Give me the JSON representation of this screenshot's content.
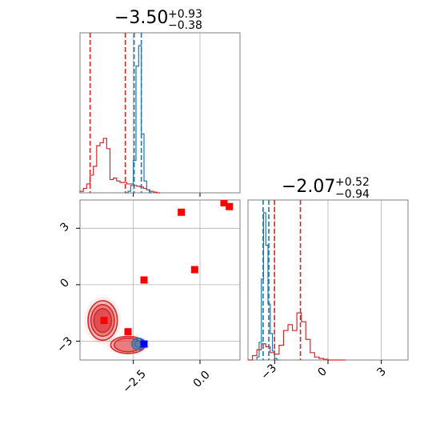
{
  "chart_data": [
    {
      "type": "histogram",
      "panel": "marginal-param-1",
      "title": {
        "value": "−3.50",
        "upper": "+0.93",
        "lower": "−0.38"
      },
      "xlim": [
        -4.5,
        1.5
      ],
      "grid": true,
      "series": [
        {
          "name": "",
          "color": "#d62728",
          "bin_edges": [
            -4.5,
            -4.375,
            -4.25,
            -4.125,
            -4.0,
            -3.875,
            -3.75,
            -3.625,
            -3.5,
            -3.375,
            -3.25,
            -3.125,
            -3.0,
            -2.875,
            -2.75,
            -2.625,
            -2.5,
            -2.375,
            -2.25,
            -2.125,
            -2.0,
            -1.875,
            -1.75,
            -1.625,
            -1.5
          ],
          "counts": [
            0.01,
            0.03,
            0.06,
            0.12,
            0.18,
            0.32,
            0.34,
            0.37,
            0.3,
            0.09,
            0.1,
            0.08,
            0.07,
            0.07,
            0.06,
            0.06,
            0.05,
            0.045,
            0.04,
            0.03,
            0.02,
            0.01,
            0.005,
            0.0
          ],
          "quantiles": [
            -4.12,
            -2.8
          ]
        },
        {
          "name": "",
          "color": "#1f77b4",
          "bin_edges": [
            -2.8,
            -2.7,
            -2.6,
            -2.5,
            -2.4,
            -2.3,
            -2.2,
            -2.1,
            -2.0,
            -1.9,
            -1.8
          ],
          "counts": [
            0.0,
            0.01,
            0.05,
            0.22,
            0.86,
            1.0,
            0.4,
            0.08,
            0.02,
            0.0
          ],
          "quantiles": [
            -2.47,
            -2.2
          ]
        }
      ]
    },
    {
      "type": "histogram",
      "panel": "marginal-param-2",
      "title": {
        "value": "−2.07",
        "upper": "+0.52",
        "lower": "−0.94"
      },
      "xlim": [
        -4.5,
        4.5
      ],
      "grid": true,
      "xticks": [
        "−3",
        "0",
        "3"
      ],
      "series": [
        {
          "name": "",
          "color": "#d62728",
          "bin_edges": [
            -4.5,
            -4.25,
            -4.0,
            -3.75,
            -3.5,
            -3.25,
            -3.0,
            -2.75,
            -2.5,
            -2.25,
            -2.0,
            -1.75,
            -1.5,
            -1.25,
            -1.0,
            -0.75,
            -0.5,
            -0.25,
            0.0,
            0.25,
            0.5,
            0.75,
            1.0
          ],
          "counts": [
            0.0,
            0.03,
            0.07,
            0.11,
            0.09,
            0.05,
            0.04,
            0.1,
            0.2,
            0.24,
            0.2,
            0.32,
            0.26,
            0.14,
            0.05,
            0.02,
            0.01,
            0.005,
            0.0,
            0.0,
            0.0,
            0.0
          ],
          "quantiles": [
            -3.01,
            -1.55
          ]
        },
        {
          "name": "",
          "color": "#1f77b4",
          "bin_edges": [
            -4.0,
            -3.875,
            -3.75,
            -3.625,
            -3.5,
            -3.375,
            -3.25,
            -3.125,
            -3.0,
            -2.875,
            -2.75
          ],
          "counts": [
            0.02,
            0.12,
            0.55,
            1.0,
            0.78,
            0.38,
            0.18,
            0.06,
            0.01,
            0.0
          ],
          "quantiles": [
            -3.65,
            -3.33
          ]
        }
      ]
    },
    {
      "type": "scatter",
      "panel": "joint-param1-param2",
      "xlim": [
        -4.5,
        1.5
      ],
      "ylim": [
        -4.0,
        4.5
      ],
      "grid": true,
      "xticks": [
        "−2.5",
        "0.0"
      ],
      "yticks": [
        "3",
        "0",
        "−3"
      ],
      "contours": [
        {
          "name": "",
          "color": "#d62728",
          "center": [
            -3.65,
            -1.9
          ],
          "rx": 0.55,
          "ry": 1.05,
          "levels": [
            1.0,
            0.8,
            0.6
          ]
        },
        {
          "name": "",
          "color": "#d62728",
          "center": [
            -2.7,
            -3.2
          ],
          "rx": 0.65,
          "ry": 0.45,
          "levels": [
            1.0,
            0.8
          ]
        },
        {
          "name": "",
          "color": "#1f77b4",
          "center": [
            -2.3,
            -3.15
          ],
          "rx": 0.25,
          "ry": 0.3,
          "levels": [
            1.0,
            0.6
          ]
        }
      ],
      "series": [
        {
          "name": "",
          "color": "#ff0000",
          "marker": "square",
          "points": [
            [
              -3.6,
              -1.9
            ],
            [
              -2.7,
              -2.5
            ],
            [
              -2.1,
              0.25
            ],
            [
              -0.2,
              0.8
            ],
            [
              -0.7,
              3.85
            ],
            [
              0.9,
              4.35
            ],
            [
              1.1,
              4.15
            ]
          ]
        },
        {
          "name": "",
          "color": "#0000ff",
          "marker": "square",
          "points": [
            [
              -2.1,
              -3.15
            ]
          ]
        }
      ]
    }
  ]
}
